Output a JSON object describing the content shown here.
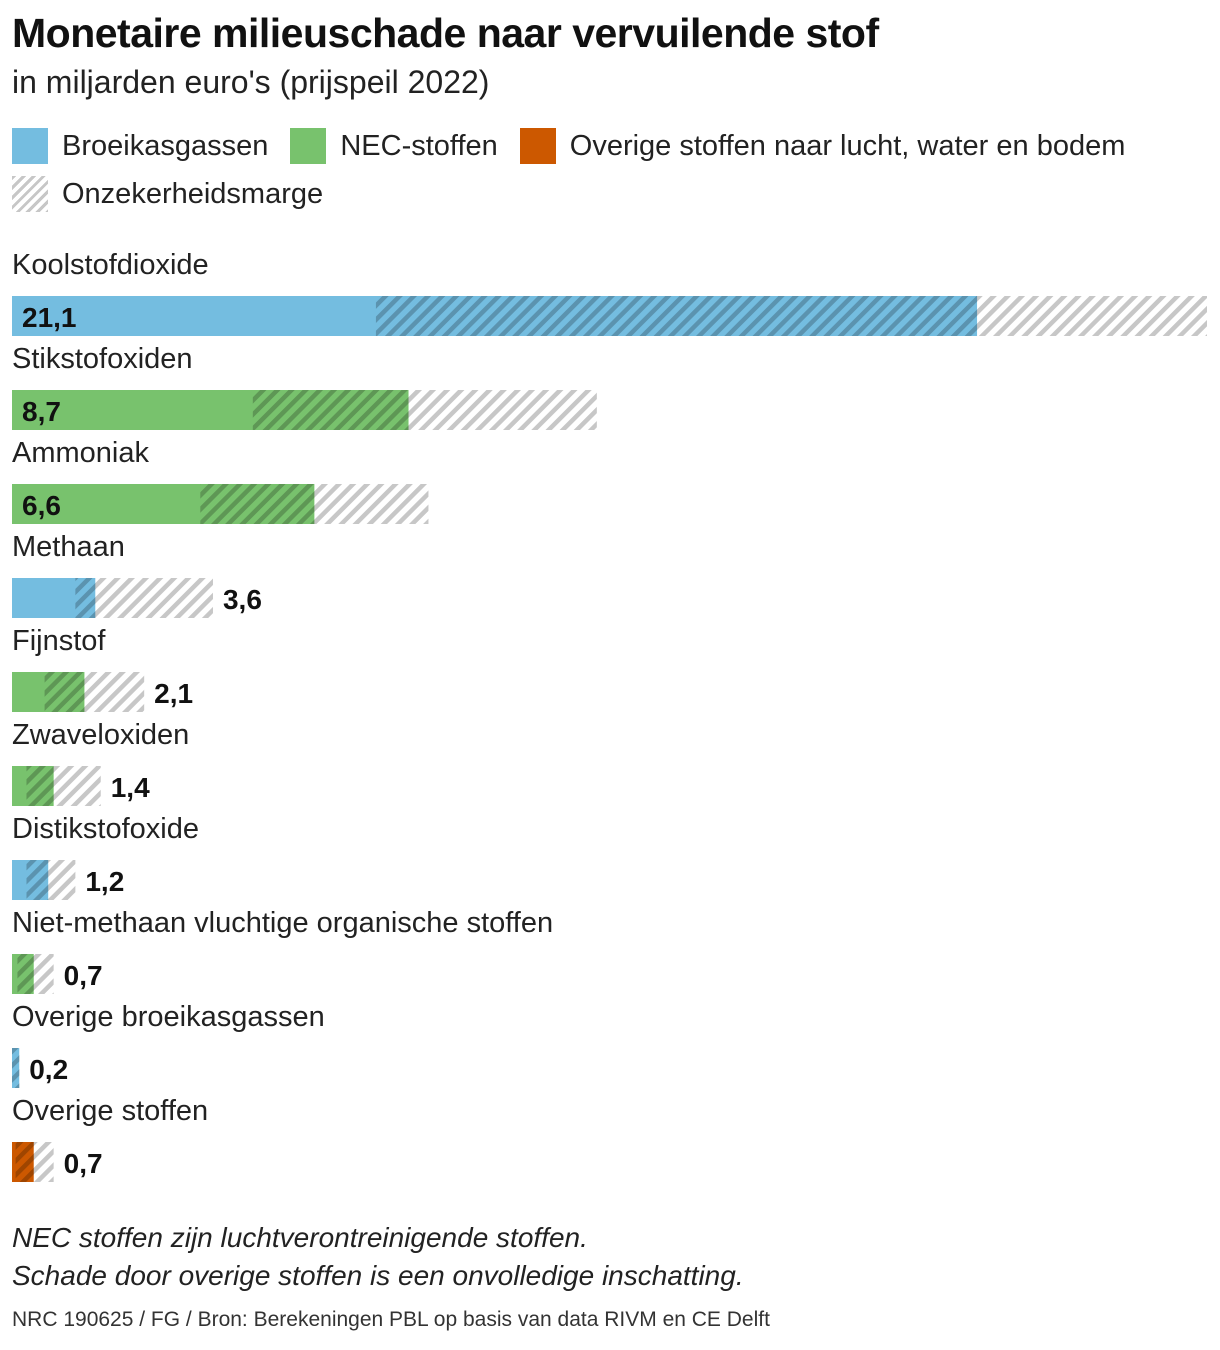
{
  "header": {
    "title": "Monetaire milieuschade naar vervuilende stof",
    "subtitle": "in miljarden euro's (prijspeil 2022)"
  },
  "legend": [
    {
      "key": "broeikas",
      "label": "Broeikasgassen",
      "color": "#74bde0"
    },
    {
      "key": "nec",
      "label": "NEC-stoffen",
      "color": "#78c26d"
    },
    {
      "key": "overig",
      "label": "Overige stoffen naar lucht, water en bodem",
      "color": "#cc5800"
    },
    {
      "key": "marge",
      "label": "Onzekerheidsmarge",
      "color": "#c7c7c7"
    }
  ],
  "chart_data": {
    "type": "bar",
    "orientation": "horizontal",
    "title": "Monetaire milieuschade naar vervuilende stof",
    "subtitle": "in miljarden euro's (prijspeil 2022)",
    "unit": "miljard euro",
    "xlim": [
      0,
      66
    ],
    "categories": [
      "Koolstofdioxide",
      "Stikstofoxiden",
      "Ammoniak",
      "Methaan",
      "Fijnstof",
      "Zwaveloxiden",
      "Distikstofoxide",
      "Niet-methaan vluchtige organische stoffen",
      "Overige broeikasgassen",
      "Overige stoffen"
    ],
    "values": [
      21.1,
      8.7,
      6.6,
      3.6,
      2.1,
      1.4,
      1.2,
      0.7,
      0.2,
      0.7
    ],
    "value_labels": [
      "21,1",
      "8,7",
      "6,6",
      "3,6",
      "2,1",
      "1,4",
      "1,2",
      "0,7",
      "0,2",
      "0,7"
    ],
    "uncertainty": {
      "low": [
        20.1,
        13.3,
        10.4,
        3.5,
        1.8,
        0.8,
        0.8,
        0.3,
        0.0,
        0.2
      ],
      "high": [
        53.3,
        21.9,
        16.7,
        4.6,
        4.0,
        2.3,
        2.0,
        1.2,
        0.4,
        1.2
      ],
      "max": [
        66.0,
        32.3,
        23.0,
        11.1,
        7.3,
        4.9,
        3.5,
        2.3,
        0.4,
        2.3
      ]
    },
    "group": [
      "broeikas",
      "nec",
      "nec",
      "broeikas",
      "nec",
      "nec",
      "broeikas",
      "nec",
      "broeikas",
      "overig"
    ],
    "legend_placement": "top",
    "grid": false
  },
  "notes": [
    "NEC stoffen zijn luchtverontreinigende stoffen.",
    "Schade door overige stoffen is een onvolledige inschatting."
  ],
  "source": "NRC 190625 / FG / Bron: Berekeningen PBL op basis van data RIVM en CE Delft"
}
